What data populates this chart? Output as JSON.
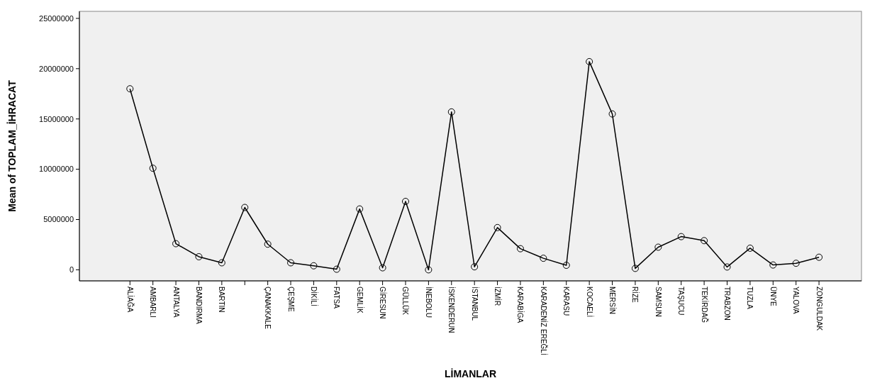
{
  "chart_data": {
    "type": "line",
    "xlabel": "LİMANLAR",
    "ylabel": "Mean of TOPLAM_İHRACAT",
    "categories": [
      "ALİAĞA",
      "AMBARLI",
      "ANTALYA",
      "BANDIRMA",
      "BARTIN",
      null,
      "ÇANAKKALE",
      "ÇEŞME",
      "DİKİLİ",
      "FATSA",
      "GEMLİK",
      "GİRESUN",
      "GÜLLÜK",
      "İNEBOLU",
      "İSKENDERUN",
      "İSTANBUL",
      "İZMİR",
      "KARABİGA",
      "KARADENİZ EREĞLİ",
      "KARASU",
      "KOCAELİ",
      "MERSİN",
      "RİZE",
      "SAMSUN",
      "TAŞUCU",
      "TEKİRDAĞ",
      "TRABZON",
      "TUZLA",
      "ÜNYE",
      "YALOVA",
      "ZONGULDAK"
    ],
    "series": [
      {
        "color": "#000000",
        "values": [
          18000000,
          10100000,
          2600000,
          1300000,
          700000,
          6200000,
          2550000,
          700000,
          400000,
          60000,
          6050000,
          200000,
          6800000,
          0,
          15700000,
          300000,
          4200000,
          2100000,
          1150000,
          450000,
          20700000,
          15500000,
          140000,
          2250000,
          3300000,
          2900000,
          280000,
          2150000,
          480000,
          650000,
          1250000
        ]
      }
    ],
    "ylim": [
      -1100000,
      25700000
    ],
    "yticks": [
      0,
      5000000,
      10000000,
      15000000,
      20000000,
      25000000
    ],
    "grid": false,
    "marker": "circle",
    "line_style": "solid"
  }
}
